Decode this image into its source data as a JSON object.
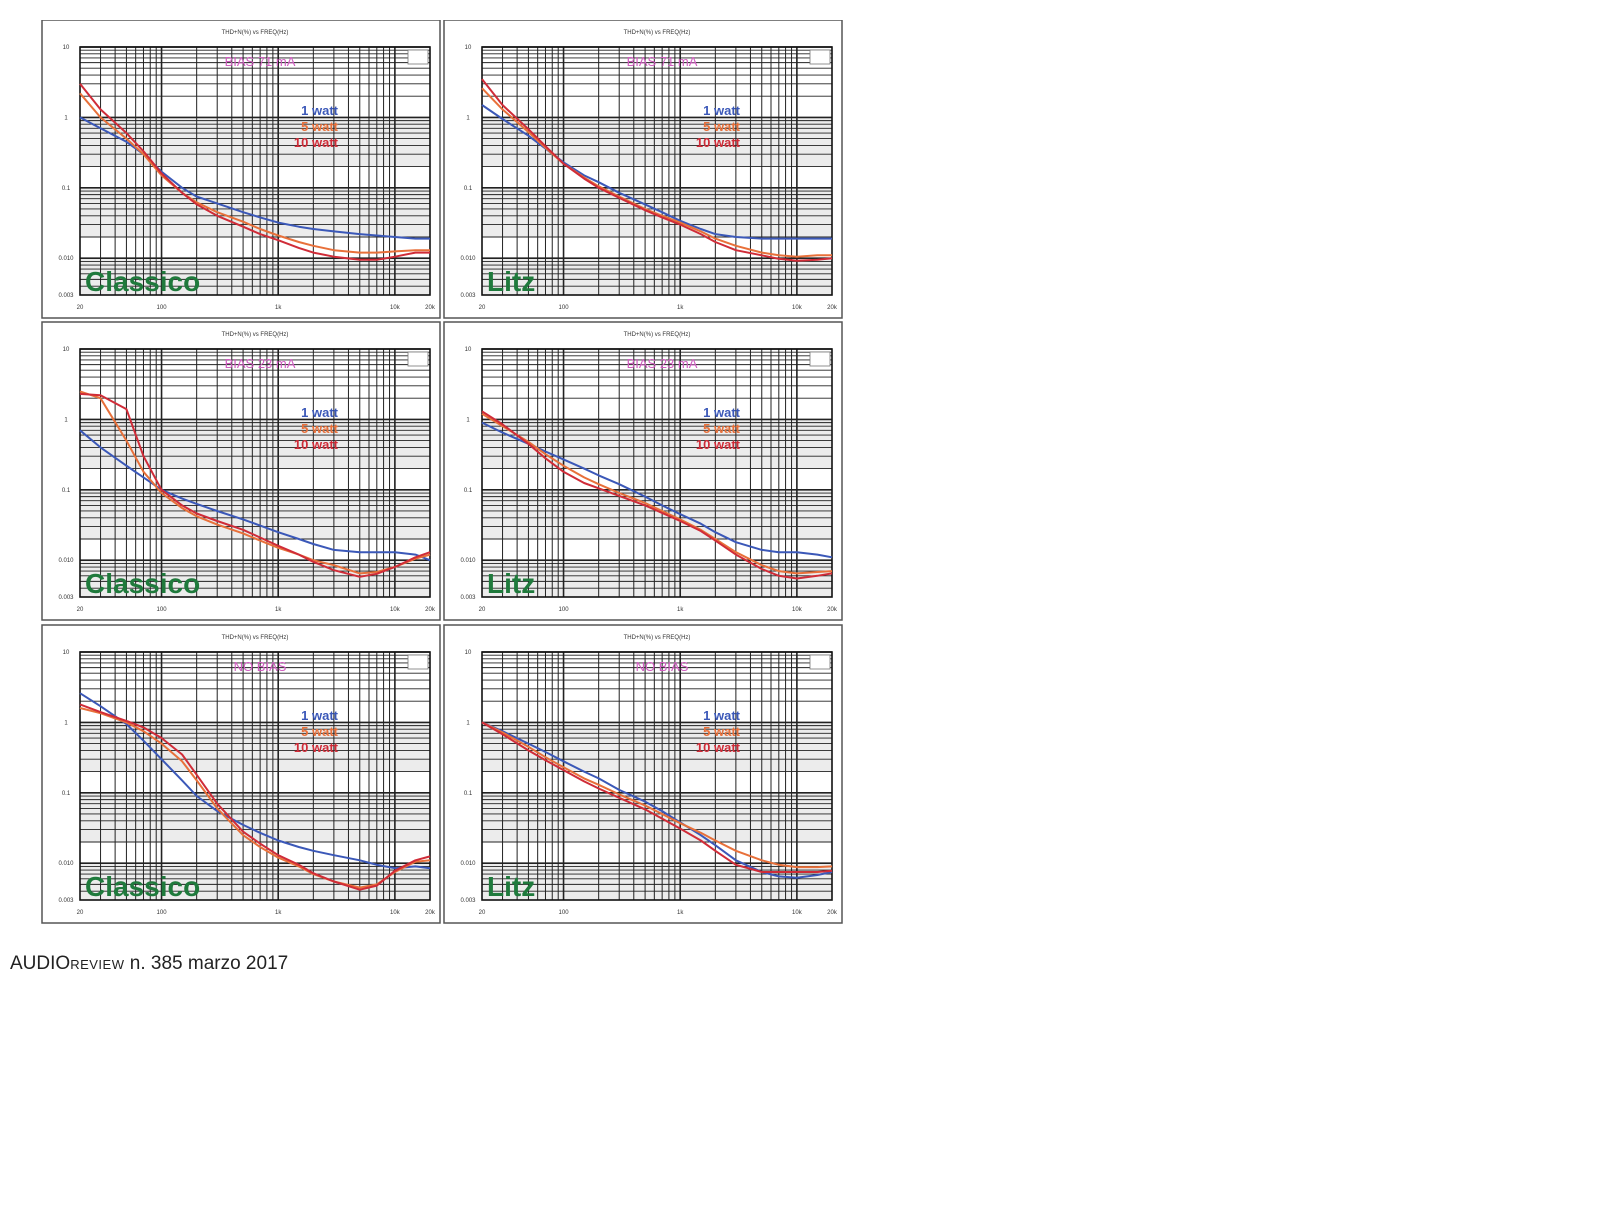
{
  "footer": {
    "magazine_main": "AUDIO",
    "magazine_small": "REVIEW",
    "issue": " n. 385 marzo 2017"
  },
  "colors": {
    "w1": "#3b58b8",
    "w5": "#e8703a",
    "w10": "#d02c38",
    "bias_label": "#d05cc0",
    "type_label": "#1f7a3c"
  },
  "chart_data": [
    {
      "type": "line",
      "title": "THD+N(%) vs FREQ(Hz)",
      "annotation": "BIAS 71 mA",
      "label": "Classico",
      "x_scale": "log",
      "y_scale": "log",
      "xlim": [
        20,
        20000
      ],
      "ylim": [
        0.003,
        10
      ],
      "x_ticks": [
        "20",
        "100",
        "1k",
        "10k",
        "20k"
      ],
      "y_ticks": [
        "10",
        "1",
        "0.1",
        "0.010",
        "0.003"
      ],
      "grid": true,
      "x": [
        20,
        30,
        50,
        70,
        100,
        150,
        200,
        300,
        500,
        700,
        1000,
        1500,
        2000,
        3000,
        5000,
        7000,
        10000,
        15000,
        20000
      ],
      "series": [
        {
          "name": "1 watt",
          "color": "#3b58b8",
          "values": [
            1.0,
            0.7,
            0.45,
            0.3,
            0.17,
            0.1,
            0.075,
            0.06,
            0.045,
            0.038,
            0.032,
            0.028,
            0.026,
            0.024,
            0.022,
            0.021,
            0.02,
            0.019,
            0.019
          ]
        },
        {
          "name": "5 watt",
          "color": "#e8703a",
          "values": [
            2.2,
            1.0,
            0.5,
            0.3,
            0.15,
            0.085,
            0.062,
            0.045,
            0.033,
            0.026,
            0.021,
            0.017,
            0.015,
            0.013,
            0.012,
            0.012,
            0.0125,
            0.013,
            0.013
          ]
        },
        {
          "name": "10 watt",
          "color": "#d02c38",
          "values": [
            3.0,
            1.3,
            0.6,
            0.33,
            0.16,
            0.085,
            0.058,
            0.04,
            0.028,
            0.022,
            0.018,
            0.014,
            0.012,
            0.0105,
            0.0095,
            0.0095,
            0.0105,
            0.012,
            0.012
          ]
        }
      ]
    },
    {
      "type": "line",
      "title": "THD+N(%) vs FREQ(Hz)",
      "annotation": "BIAS 71 mA",
      "label": "Litz",
      "x_scale": "log",
      "y_scale": "log",
      "xlim": [
        20,
        20000
      ],
      "ylim": [
        0.003,
        10
      ],
      "x_ticks": [
        "20",
        "100",
        "1k",
        "10k",
        "20k"
      ],
      "y_ticks": [
        "10",
        "1",
        "0.1",
        "0.010",
        "0.003"
      ],
      "grid": true,
      "x": [
        20,
        30,
        50,
        70,
        100,
        150,
        200,
        300,
        500,
        700,
        1000,
        1500,
        2000,
        3000,
        5000,
        7000,
        10000,
        15000,
        20000
      ],
      "series": [
        {
          "name": "1 watt",
          "color": "#3b58b8",
          "values": [
            1.5,
            0.95,
            0.55,
            0.36,
            0.23,
            0.15,
            0.12,
            0.085,
            0.058,
            0.045,
            0.034,
            0.026,
            0.022,
            0.02,
            0.019,
            0.019,
            0.019,
            0.019,
            0.019
          ]
        },
        {
          "name": "5 watt",
          "color": "#e8703a",
          "values": [
            2.6,
            1.3,
            0.62,
            0.37,
            0.22,
            0.14,
            0.105,
            0.075,
            0.05,
            0.04,
            0.032,
            0.024,
            0.019,
            0.015,
            0.012,
            0.011,
            0.0105,
            0.011,
            0.011
          ]
        },
        {
          "name": "10 watt",
          "color": "#d02c38",
          "values": [
            3.5,
            1.5,
            0.68,
            0.39,
            0.22,
            0.135,
            0.1,
            0.072,
            0.048,
            0.038,
            0.03,
            0.022,
            0.017,
            0.013,
            0.011,
            0.0098,
            0.0092,
            0.0095,
            0.01
          ]
        }
      ]
    },
    {
      "type": "line",
      "title": "THD+N(%) vs FREQ(Hz)",
      "annotation": "BIAS 23 mA",
      "label": "Classico",
      "x_scale": "log",
      "y_scale": "log",
      "xlim": [
        20,
        20000
      ],
      "ylim": [
        0.003,
        10
      ],
      "x_ticks": [
        "20",
        "100",
        "1k",
        "10k",
        "20k"
      ],
      "y_ticks": [
        "10",
        "1",
        "0.1",
        "0.010",
        "0.003"
      ],
      "grid": true,
      "x": [
        20,
        30,
        50,
        70,
        100,
        150,
        200,
        300,
        500,
        700,
        1000,
        1500,
        2000,
        3000,
        5000,
        7000,
        10000,
        15000,
        20000
      ],
      "series": [
        {
          "name": "1 watt",
          "color": "#3b58b8",
          "values": [
            0.7,
            0.4,
            0.22,
            0.15,
            0.1,
            0.075,
            0.063,
            0.05,
            0.038,
            0.031,
            0.025,
            0.02,
            0.017,
            0.014,
            0.013,
            0.013,
            0.013,
            0.012,
            0.01
          ]
        },
        {
          "name": "5 watt",
          "color": "#e8703a",
          "values": [
            2.5,
            2.0,
            0.5,
            0.18,
            0.09,
            0.055,
            0.042,
            0.032,
            0.024,
            0.019,
            0.015,
            0.012,
            0.01,
            0.0085,
            0.0065,
            0.0068,
            0.008,
            0.0105,
            0.012
          ]
        },
        {
          "name": "10 watt",
          "color": "#d02c38",
          "values": [
            2.3,
            2.2,
            1.4,
            0.3,
            0.1,
            0.06,
            0.046,
            0.036,
            0.027,
            0.021,
            0.016,
            0.012,
            0.0095,
            0.0072,
            0.0058,
            0.0064,
            0.008,
            0.011,
            0.013
          ]
        }
      ]
    },
    {
      "type": "line",
      "title": "THD+N(%) vs FREQ(Hz)",
      "annotation": "BIAS 23 mA",
      "label": "Litz",
      "x_scale": "log",
      "y_scale": "log",
      "xlim": [
        20,
        20000
      ],
      "ylim": [
        0.003,
        10
      ],
      "x_ticks": [
        "20",
        "100",
        "1k",
        "10k",
        "20k"
      ],
      "y_ticks": [
        "10",
        "1",
        "0.1",
        "0.010",
        "0.003"
      ],
      "grid": true,
      "x": [
        20,
        30,
        50,
        70,
        100,
        150,
        200,
        300,
        500,
        700,
        1000,
        1500,
        2000,
        3000,
        5000,
        7000,
        10000,
        15000,
        20000
      ],
      "series": [
        {
          "name": "1 watt",
          "color": "#3b58b8",
          "values": [
            0.9,
            0.65,
            0.45,
            0.35,
            0.27,
            0.2,
            0.16,
            0.12,
            0.08,
            0.06,
            0.045,
            0.033,
            0.025,
            0.018,
            0.014,
            0.013,
            0.013,
            0.012,
            0.011
          ]
        },
        {
          "name": "5 watt",
          "color": "#e8703a",
          "values": [
            1.2,
            0.8,
            0.48,
            0.32,
            0.22,
            0.15,
            0.12,
            0.09,
            0.065,
            0.05,
            0.038,
            0.027,
            0.02,
            0.013,
            0.0085,
            0.007,
            0.0065,
            0.0068,
            0.007
          ]
        },
        {
          "name": "10 watt",
          "color": "#d02c38",
          "values": [
            1.3,
            0.85,
            0.45,
            0.28,
            0.18,
            0.125,
            0.105,
            0.082,
            0.06,
            0.047,
            0.036,
            0.026,
            0.019,
            0.012,
            0.0075,
            0.006,
            0.0055,
            0.006,
            0.0065
          ]
        }
      ]
    },
    {
      "type": "line",
      "title": "THD+N(%) vs FREQ(Hz)",
      "annotation": "NO BIAS",
      "label": "Classico",
      "x_scale": "log",
      "y_scale": "log",
      "xlim": [
        20,
        20000
      ],
      "ylim": [
        0.003,
        10
      ],
      "x_ticks": [
        "20",
        "100",
        "1k",
        "10k",
        "20k"
      ],
      "y_ticks": [
        "10",
        "1",
        "0.1",
        "0.010",
        "0.003"
      ],
      "grid": true,
      "x": [
        20,
        30,
        50,
        70,
        100,
        150,
        200,
        300,
        500,
        700,
        1000,
        1500,
        2000,
        3000,
        5000,
        7000,
        10000,
        15000,
        20000
      ],
      "series": [
        {
          "name": "1 watt",
          "color": "#3b58b8",
          "values": [
            2.6,
            1.7,
            0.95,
            0.55,
            0.3,
            0.15,
            0.09,
            0.055,
            0.035,
            0.027,
            0.021,
            0.017,
            0.015,
            0.013,
            0.011,
            0.0095,
            0.0085,
            0.009,
            0.0085
          ]
        },
        {
          "name": "5 watt",
          "color": "#e8703a",
          "values": [
            1.6,
            1.35,
            1.0,
            0.75,
            0.5,
            0.28,
            0.15,
            0.06,
            0.025,
            0.017,
            0.012,
            0.009,
            0.007,
            0.0055,
            0.0045,
            0.005,
            0.0075,
            0.0105,
            0.011
          ]
        },
        {
          "name": "10 watt",
          "color": "#d02c38",
          "values": [
            1.8,
            1.4,
            1.05,
            0.85,
            0.6,
            0.35,
            0.18,
            0.07,
            0.028,
            0.019,
            0.013,
            0.0095,
            0.0072,
            0.0055,
            0.0042,
            0.0048,
            0.0078,
            0.011,
            0.0125
          ]
        }
      ]
    },
    {
      "type": "line",
      "title": "THD+N(%) vs FREQ(Hz)",
      "annotation": "NO BIAS",
      "label": "Litz",
      "x_scale": "log",
      "y_scale": "log",
      "xlim": [
        20,
        20000
      ],
      "ylim": [
        0.003,
        10
      ],
      "x_ticks": [
        "20",
        "100",
        "1k",
        "10k",
        "20k"
      ],
      "y_ticks": [
        "10",
        "1",
        "0.1",
        "0.010",
        "0.003"
      ],
      "grid": true,
      "x": [
        20,
        30,
        50,
        70,
        100,
        150,
        200,
        300,
        500,
        700,
        1000,
        1500,
        2000,
        3000,
        5000,
        7000,
        10000,
        15000,
        20000
      ],
      "series": [
        {
          "name": "1 watt",
          "color": "#3b58b8",
          "values": [
            1.0,
            0.75,
            0.5,
            0.38,
            0.28,
            0.2,
            0.16,
            0.11,
            0.075,
            0.055,
            0.038,
            0.025,
            0.018,
            0.011,
            0.0075,
            0.0065,
            0.0062,
            0.0068,
            0.0075
          ]
        },
        {
          "name": "5 watt",
          "color": "#e8703a",
          "values": [
            1.0,
            0.72,
            0.45,
            0.32,
            0.23,
            0.16,
            0.13,
            0.095,
            0.066,
            0.05,
            0.037,
            0.027,
            0.021,
            0.015,
            0.011,
            0.0095,
            0.0088,
            0.0088,
            0.009
          ]
        },
        {
          "name": "10 watt",
          "color": "#d02c38",
          "values": [
            1.0,
            0.68,
            0.4,
            0.29,
            0.21,
            0.145,
            0.115,
            0.085,
            0.058,
            0.043,
            0.031,
            0.021,
            0.015,
            0.0095,
            0.0075,
            0.0075,
            0.0075,
            0.0075,
            0.0078
          ]
        }
      ]
    }
  ]
}
